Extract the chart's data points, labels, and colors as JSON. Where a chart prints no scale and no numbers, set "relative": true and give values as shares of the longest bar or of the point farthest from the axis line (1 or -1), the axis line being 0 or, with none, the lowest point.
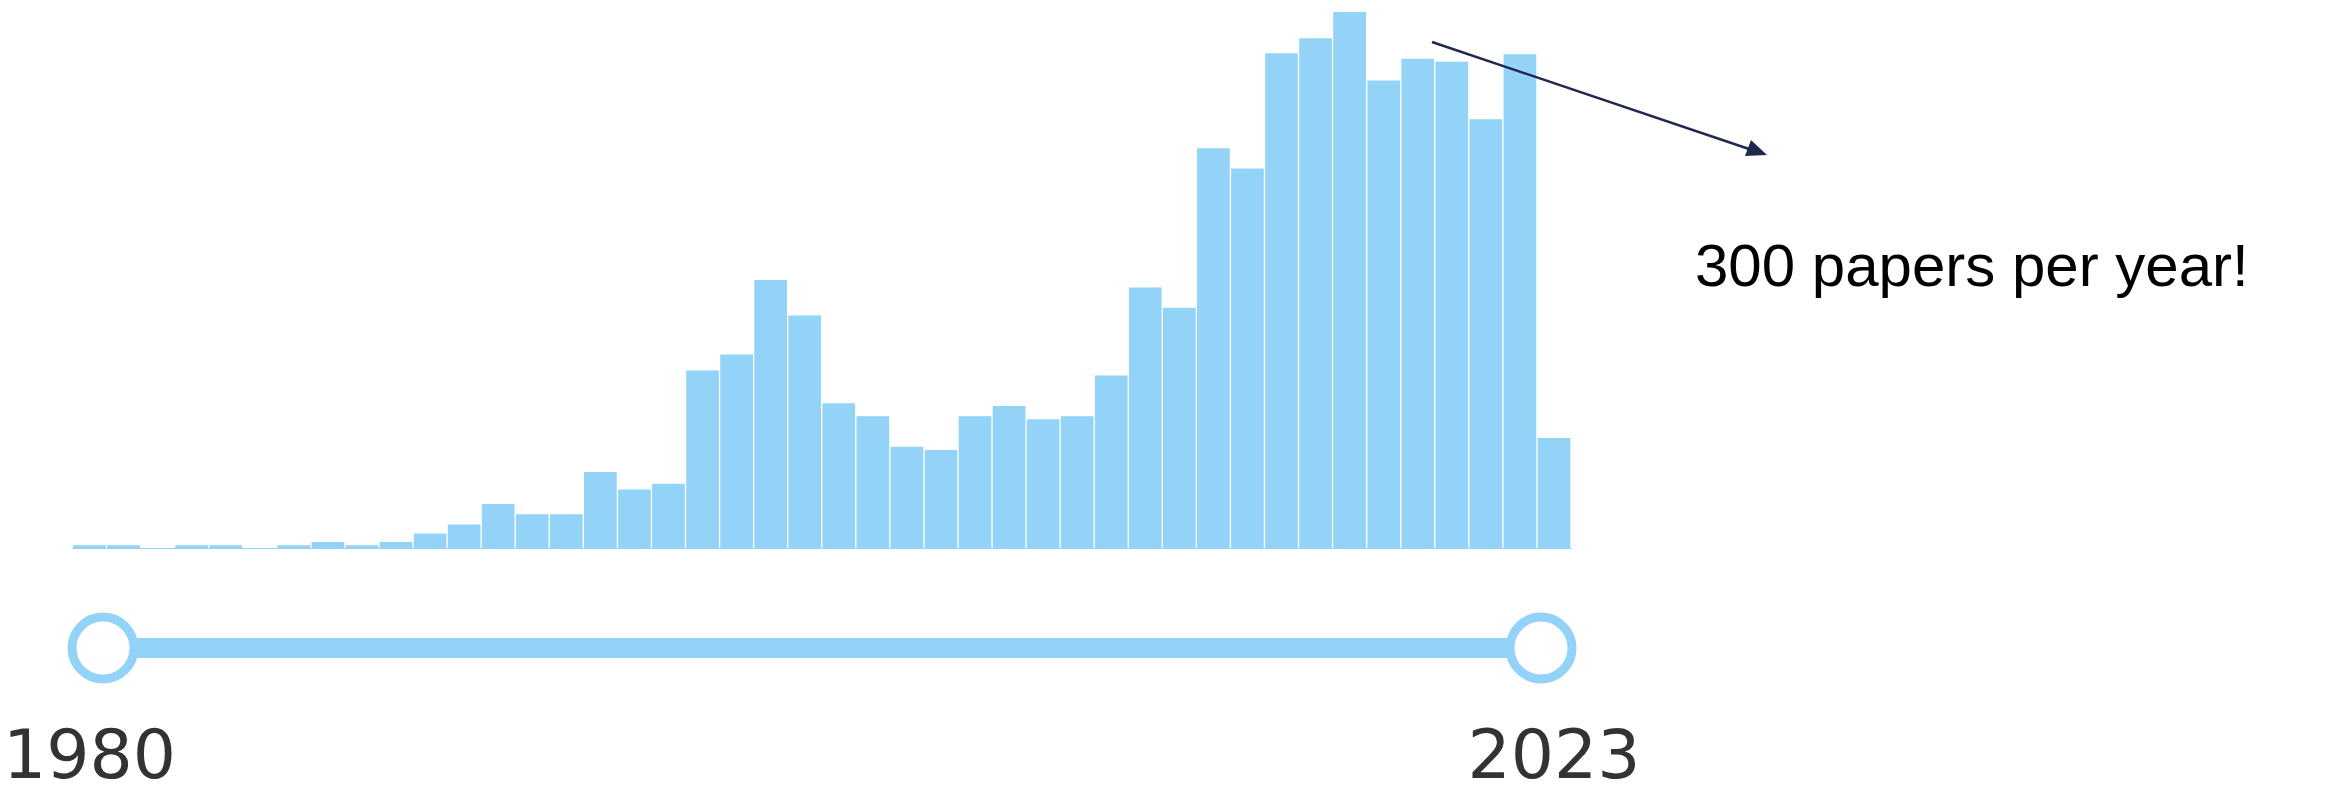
{
  "chart_data": {
    "type": "bar",
    "relative": true,
    "color": "#92d3f7",
    "categories": [
      "1980",
      null,
      null,
      null,
      null,
      null,
      null,
      null,
      null,
      null,
      null,
      null,
      null,
      null,
      null,
      null,
      null,
      null,
      null,
      null,
      null,
      null,
      null,
      null,
      null,
      null,
      null,
      null,
      null,
      null,
      null,
      null,
      null,
      null,
      null,
      null,
      null,
      null,
      null,
      null,
      null,
      null,
      null,
      "2023"
    ],
    "values": [
      0.005,
      0.005,
      0,
      0.005,
      0.005,
      0,
      0.005,
      0.011,
      0.005,
      0.011,
      0.027,
      0.044,
      0.082,
      0.063,
      0.063,
      0.142,
      0.109,
      0.12,
      0.331,
      0.361,
      0.5,
      0.434,
      0.27,
      0.246,
      0.189,
      0.183,
      0.246,
      0.265,
      0.24,
      0.246,
      0.322,
      0.486,
      0.448,
      0.746,
      0.708,
      0.923,
      0.951,
      1,
      0.872,
      0.913,
      0.907,
      0.8,
      0.921,
      0.205
    ],
    "annotations": [
      "300 papers per year!"
    ]
  }
}
